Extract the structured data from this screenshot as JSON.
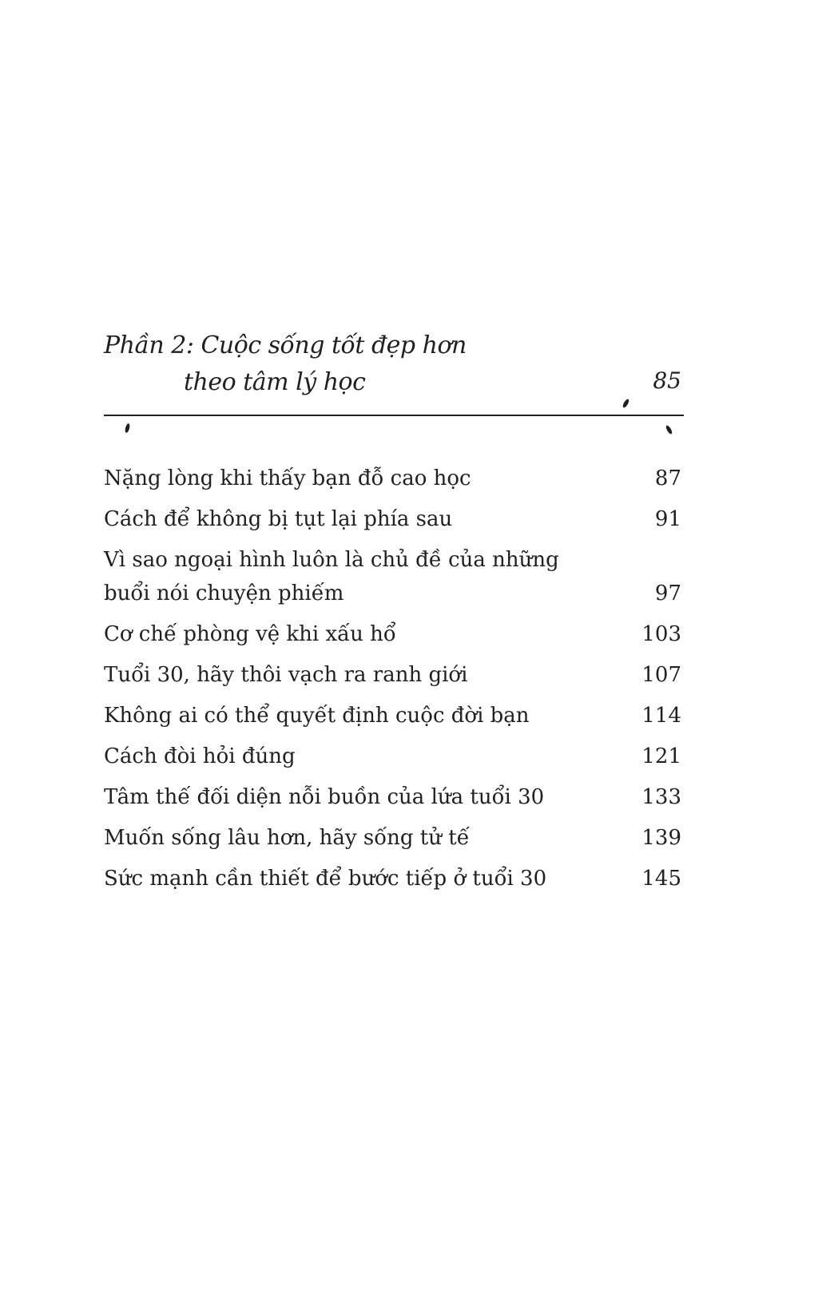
{
  "section": {
    "title_line1": "Phần 2: Cuộc sống tốt đẹp hơn",
    "title_line2": "theo tâm lý học",
    "page": "85"
  },
  "entries": [
    {
      "title": "Nặng lòng khi thấy bạn đỗ cao học",
      "page": "87"
    },
    {
      "title": "Cách để không bị tụt lại phía sau",
      "page": "91"
    },
    {
      "title": "Vì sao ngoại hình luôn là chủ đề của những buổi nói chuyện phiếm",
      "page": "97"
    },
    {
      "title": "Cơ chế phòng vệ khi xấu hổ",
      "page": "103"
    },
    {
      "title": "Tuổi 30, hãy thôi vạch ra ranh giới",
      "page": "107"
    },
    {
      "title": "Không ai có thể quyết định cuộc đời bạn",
      "page": "114"
    },
    {
      "title": "Cách đòi hỏi đúng",
      "page": "121"
    },
    {
      "title": "Tâm thế đối diện nỗi buồn của lứa tuổi 30",
      "page": "133"
    },
    {
      "title": "Muốn sống lâu hơn, hãy sống tử tế",
      "page": "139"
    },
    {
      "title": "Sức mạnh cần thiết để bước tiếp ở tuổi 30",
      "page": "145"
    }
  ]
}
